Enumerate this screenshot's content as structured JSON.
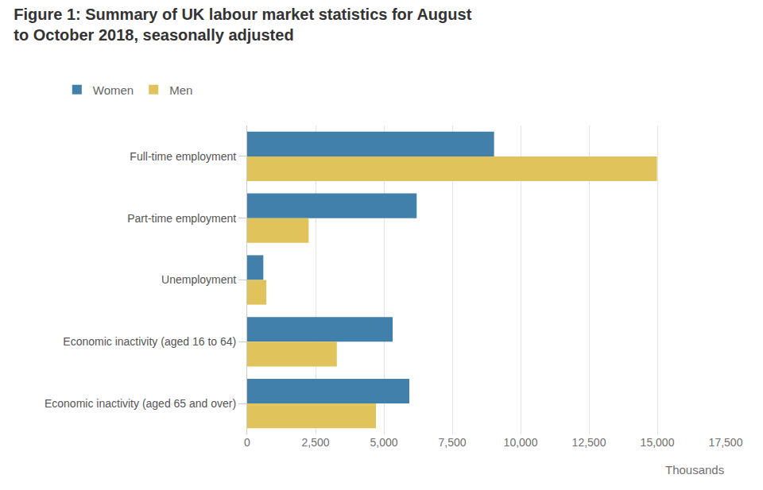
{
  "chart_data": {
    "type": "bar",
    "orientation": "horizontal",
    "title": "Figure 1: Summary of UK labour market statistics for August\nto October 2018, seasonally adjusted",
    "x_label": "Thousands",
    "categories": [
      "Full-time employment",
      "Part-time employment",
      "Unemployment",
      "Economic inactivity (aged 16 to 64)",
      "Economic inactivity (aged 65 and over)"
    ],
    "series": [
      {
        "name": "Women",
        "color": "#4180aa",
        "values": [
          9030,
          6200,
          590,
          5320,
          5930
        ]
      },
      {
        "name": "Men",
        "color": "#e0c35b",
        "values": [
          14990,
          2250,
          700,
          3280,
          4710
        ]
      }
    ],
    "xlim": [
      0,
      17500
    ],
    "xticks": [
      0,
      {
        "value": 2500,
        "label": "2,500"
      },
      {
        "value": 5000,
        "label": "5,000"
      },
      {
        "value": 7500,
        "label": "7,500"
      },
      {
        "value": 10000,
        "label": "10,000"
      },
      {
        "value": 12500,
        "label": "12,500"
      },
      {
        "value": 15000,
        "label": "15,000"
      },
      {
        "value": 17500,
        "label": "17,500"
      }
    ],
    "grid": true,
    "legend": "top-left"
  }
}
